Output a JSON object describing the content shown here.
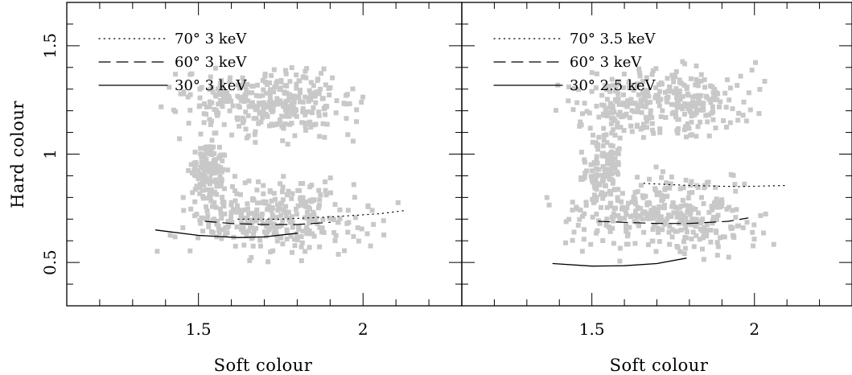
{
  "chart_data": [
    {
      "type": "scatter",
      "panel": "left",
      "xlabel": "Soft colour",
      "ylabel": "Hard colour",
      "xlim": [
        1.1,
        2.3
      ],
      "ylim": [
        0.3,
        1.7
      ],
      "x_ticks": [
        1.5,
        2
      ],
      "x_tick_labels": [
        "1.5",
        "2"
      ],
      "y_ticks": [
        0.5,
        1,
        1.5
      ],
      "y_tick_labels": [
        "0.5",
        "1",
        "1.5"
      ],
      "grid": false,
      "legend_position": "top-left",
      "point_color": "#c8c8c8",
      "scatter_clusters": [
        {
          "description": "upper branch",
          "x_range": [
            1.35,
            2.05
          ],
          "y_range": [
            1.05,
            1.45
          ]
        },
        {
          "description": "vertical bridge",
          "x_range": [
            1.45,
            1.6
          ],
          "y_range": [
            0.75,
            1.15
          ]
        },
        {
          "description": "lower branch",
          "x_range": [
            1.35,
            2.1
          ],
          "y_range": [
            0.5,
            0.95
          ]
        }
      ],
      "series": [
        {
          "name": "70° 3 keV",
          "style": "dotted",
          "x": [
            1.62,
            1.75,
            1.9,
            2.05,
            2.13
          ],
          "y": [
            0.7,
            0.7,
            0.71,
            0.725,
            0.74
          ]
        },
        {
          "name": "60° 3 keV",
          "style": "dashed",
          "x": [
            1.52,
            1.6,
            1.7,
            1.8,
            1.9
          ],
          "y": [
            0.69,
            0.68,
            0.675,
            0.675,
            0.685
          ]
        },
        {
          "name": "30° 3 keV",
          "style": "solid",
          "x": [
            1.37,
            1.5,
            1.62,
            1.7,
            1.8
          ],
          "y": [
            0.65,
            0.625,
            0.615,
            0.618,
            0.635
          ]
        }
      ]
    },
    {
      "type": "scatter",
      "panel": "right",
      "xlabel": "Soft colour",
      "ylabel": "",
      "xlim": [
        1.1,
        2.3
      ],
      "ylim": [
        0.3,
        1.7
      ],
      "x_ticks": [
        1.5,
        2
      ],
      "x_tick_labels": [
        "1.5",
        "2"
      ],
      "y_ticks": [
        0.5,
        1,
        1.5
      ],
      "y_tick_labels": [],
      "grid": false,
      "legend_position": "top-left",
      "point_color": "#c8c8c8",
      "scatter_clusters": [
        {
          "description": "upper branch",
          "x_range": [
            1.35,
            2.05
          ],
          "y_range": [
            1.05,
            1.45
          ]
        },
        {
          "description": "vertical bridge",
          "x_range": [
            1.45,
            1.6
          ],
          "y_range": [
            0.75,
            1.15
          ]
        },
        {
          "description": "lower branch",
          "x_range": [
            1.35,
            2.1
          ],
          "y_range": [
            0.5,
            0.95
          ]
        }
      ],
      "series": [
        {
          "name": "70° 3.5 keV",
          "style": "dotted",
          "x": [
            1.66,
            1.8,
            1.95,
            2.1
          ],
          "y": [
            0.865,
            0.855,
            0.85,
            0.855
          ]
        },
        {
          "name": "60° 3 keV",
          "style": "dashed",
          "x": [
            1.52,
            1.6,
            1.7,
            1.8,
            1.92,
            1.98
          ],
          "y": [
            0.69,
            0.685,
            0.68,
            0.68,
            0.69,
            0.705
          ]
        },
        {
          "name": "30° 2.5 keV",
          "style": "solid",
          "x": [
            1.38,
            1.5,
            1.6,
            1.7,
            1.79
          ],
          "y": [
            0.495,
            0.483,
            0.485,
            0.495,
            0.52
          ]
        }
      ]
    }
  ]
}
